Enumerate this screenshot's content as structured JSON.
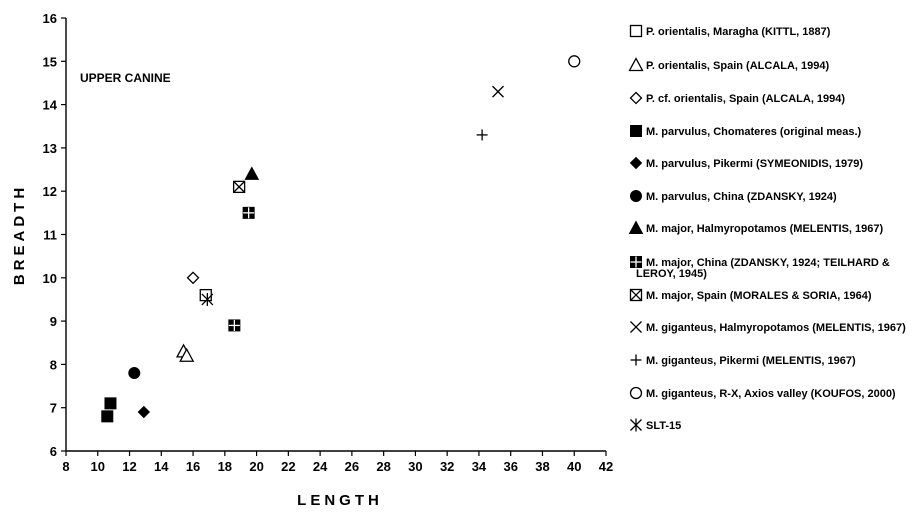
{
  "chart_data": {
    "type": "scatter",
    "title": "",
    "annotation": "UPPER CANINE",
    "xlabel": "LENGTH",
    "ylabel": "BREADTH",
    "xlim": [
      8,
      42
    ],
    "ylim": [
      6,
      16
    ],
    "xticks": [
      8,
      10,
      12,
      14,
      16,
      18,
      20,
      22,
      24,
      26,
      28,
      30,
      32,
      34,
      36,
      38,
      40,
      42
    ],
    "yticks": [
      6,
      7,
      8,
      9,
      10,
      11,
      12,
      13,
      14,
      15,
      16
    ],
    "grid": false,
    "legend_position": "right",
    "series": [
      {
        "name": "P. orientalis, Maragha (KITTL, 1887)",
        "marker": "open-square",
        "points": [
          [
            16.8,
            9.6
          ]
        ]
      },
      {
        "name": "P. orientalis, Spain (ALCALA, 1994)",
        "marker": "open-triangle",
        "points": [
          [
            15.4,
            8.3
          ],
          [
            15.6,
            8.2
          ]
        ]
      },
      {
        "name": "P. cf. orientalis, Spain (ALCALA, 1994)",
        "marker": "open-diamond",
        "points": [
          [
            16.0,
            10.0
          ]
        ]
      },
      {
        "name": "M. parvulus, Chomateres (original meas.)",
        "marker": "filled-square",
        "points": [
          [
            10.6,
            6.8
          ],
          [
            10.8,
            7.1
          ]
        ]
      },
      {
        "name": "M. parvulus, Pikermi (SYMEONIDIS, 1979)",
        "marker": "filled-diamond",
        "points": [
          [
            12.9,
            6.9
          ]
        ]
      },
      {
        "name": "M. parvulus, China (ZDANSKY, 1924)",
        "marker": "filled-circle",
        "points": [
          [
            12.3,
            7.8
          ]
        ]
      },
      {
        "name": "M. major, Halmyropotamos (MELENTIS, 1967)",
        "marker": "filled-triangle",
        "points": [
          [
            19.7,
            12.4
          ]
        ]
      },
      {
        "name": "M. major, China (ZDANSKY, 1924; TEILHARD & LEROY, 1945)",
        "marker": "cross-square",
        "points": [
          [
            19.5,
            11.5
          ],
          [
            18.6,
            8.9
          ]
        ]
      },
      {
        "name": "M. major, Spain (MORALES & SORIA, 1964)",
        "marker": "x-square",
        "points": [
          [
            18.9,
            12.1
          ]
        ]
      },
      {
        "name": "M. giganteus, Halmyropotamos (MELENTIS, 1967)",
        "marker": "x",
        "points": [
          [
            35.2,
            14.3
          ]
        ]
      },
      {
        "name": "M. giganteus, Pikermi (MELENTIS, 1967)",
        "marker": "plus",
        "points": [
          [
            34.2,
            13.3
          ]
        ]
      },
      {
        "name": "M. giganteus, R-X, Axios valley (KOUFOS, 2000)",
        "marker": "open-circle",
        "points": [
          [
            40.0,
            15.0
          ]
        ]
      },
      {
        "name": "SLT-15",
        "marker": "asterisk",
        "points": [
          [
            16.9,
            9.5
          ]
        ]
      }
    ]
  }
}
